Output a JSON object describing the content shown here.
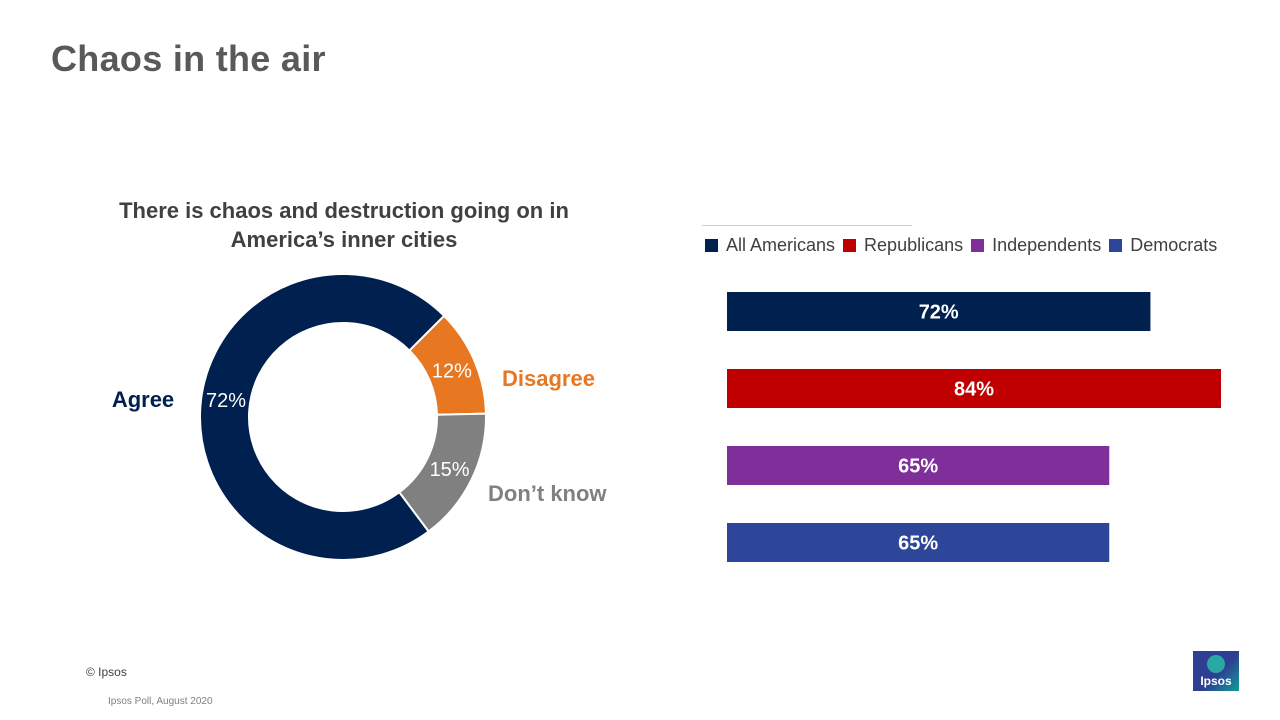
{
  "page": {
    "title": "Chaos in the air",
    "copyright": "© Ipsos",
    "source": "Ipsos Poll, August 2020",
    "logo_text": "Ipsos"
  },
  "chart_data": [
    {
      "type": "pie",
      "title": "There is chaos and destruction going on in America’s inner cities",
      "slices": [
        {
          "label": "Agree",
          "value": 72,
          "value_label": "72%",
          "color": "#002050"
        },
        {
          "label": "Disagree",
          "value": 12,
          "value_label": "12%",
          "color": "#e87722"
        },
        {
          "label": "Don’t know",
          "value": 15,
          "value_label": "15%",
          "color": "#808080"
        }
      ],
      "label_colors": {
        "Agree": "#002050",
        "Disagree": "#e87722",
        "Don’t know": "#808080"
      }
    },
    {
      "type": "bar",
      "orientation": "horizontal",
      "categories": [
        "All Americans",
        "Republicans",
        "Independents",
        "Democrats"
      ],
      "values": [
        72,
        84,
        65,
        65
      ],
      "value_labels": [
        "72%",
        "84%",
        "65%",
        "65%"
      ],
      "colors": [
        "#002050",
        "#c00000",
        "#7f2f9a",
        "#2e4699"
      ],
      "legend": [
        "All Americans",
        "Republicans",
        "Independents",
        "Democrats"
      ],
      "legend_position": "top",
      "xlim": [
        0,
        100
      ]
    }
  ]
}
